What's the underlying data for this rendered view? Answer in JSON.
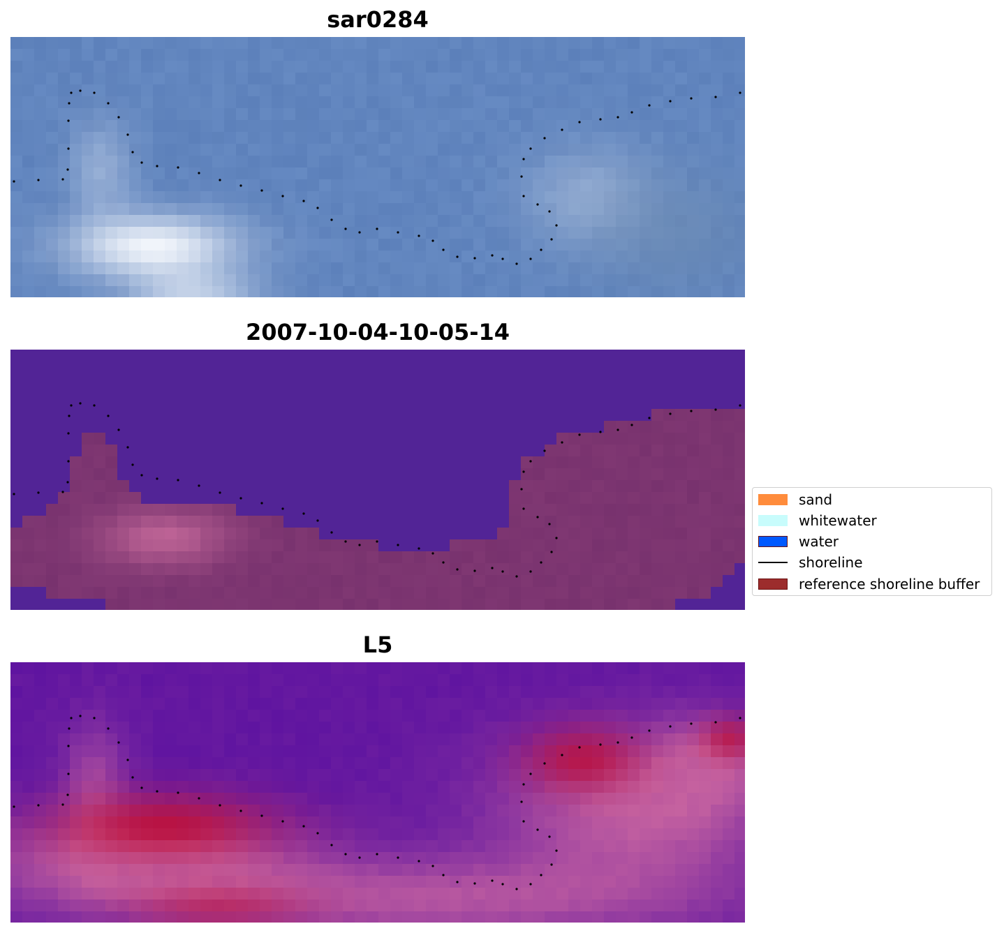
{
  "panels": [
    {
      "title": "sar0284",
      "style": "rgb"
    },
    {
      "title": "2007-10-04-10-05-14",
      "style": "class"
    },
    {
      "title": "L5",
      "style": "index"
    }
  ],
  "legend": {
    "items": [
      {
        "label": "sand",
        "kind": "patch",
        "color": "#ff8c3c"
      },
      {
        "label": "whitewater",
        "kind": "patch",
        "color": "#c8fcfc"
      },
      {
        "label": "water",
        "kind": "patch",
        "color": "#0059ff"
      },
      {
        "label": "shoreline",
        "kind": "line",
        "color": "#000000"
      },
      {
        "label": "reference shoreline buffer",
        "kind": "patch",
        "color": "#9c2c2c"
      }
    ]
  }
}
